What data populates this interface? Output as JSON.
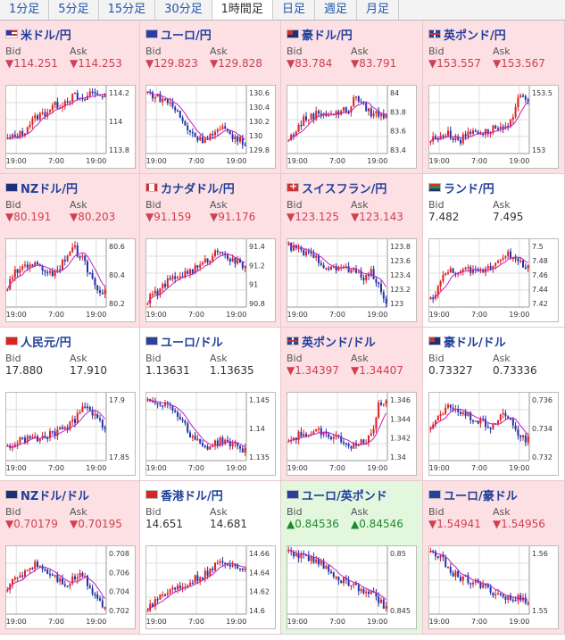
{
  "tabs": [
    "1分足",
    "5分足",
    "15分足",
    "30分足",
    "1時間足",
    "日足",
    "週足",
    "月足"
  ],
  "selected_tab": 4,
  "labels": {
    "bid": "Bid",
    "ask": "Ask"
  },
  "time_labels": [
    "19:00",
    "7:00",
    "19:00"
  ],
  "colors": {
    "down_bg": "#fde0e4",
    "up_bg": "#e3f7df",
    "down_text": "#d04050",
    "up_text": "#1e8a2e",
    "up_candle": "#d22",
    "down_candle": "#2233aa",
    "ma": "#c020c0"
  },
  "pairs": [
    {
      "name": "米ドル/円",
      "flag": "us",
      "dir": "down",
      "bid": "▼114.251",
      "ask": "▼114.253",
      "ticks": [
        "114.2",
        "114",
        "113.8"
      ],
      "trend": [
        0.2,
        0.25,
        0.3,
        0.45,
        0.55,
        0.6,
        0.7,
        0.72,
        0.8,
        0.85,
        0.75,
        0.9,
        0.88,
        0.86
      ]
    },
    {
      "name": "ユーロ/円",
      "flag": "eu",
      "dir": "down",
      "bid": "▼129.823",
      "ask": "▼129.828",
      "ticks": [
        "130.6",
        "130.4",
        "130.2",
        "130",
        "129.8"
      ],
      "trend": [
        0.9,
        0.85,
        0.8,
        0.75,
        0.6,
        0.4,
        0.3,
        0.2,
        0.25,
        0.3,
        0.35,
        0.3,
        0.2,
        0.15
      ]
    },
    {
      "name": "豪ドル/円",
      "flag": "au",
      "dir": "down",
      "bid": "▼83.784",
      "ask": "▼83.791",
      "ticks": [
        "84",
        "83.8",
        "83.6",
        "83.4"
      ],
      "trend": [
        0.2,
        0.35,
        0.5,
        0.55,
        0.6,
        0.6,
        0.58,
        0.62,
        0.65,
        0.85,
        0.7,
        0.6,
        0.58,
        0.55
      ]
    },
    {
      "name": "英ポンド/円",
      "flag": "gb",
      "dir": "down",
      "bid": "▼153.557",
      "ask": "▼153.567",
      "ticks": [
        "153.5",
        "153"
      ],
      "trend": [
        0.2,
        0.25,
        0.3,
        0.25,
        0.2,
        0.3,
        0.35,
        0.3,
        0.35,
        0.4,
        0.35,
        0.5,
        0.9,
        0.8
      ]
    },
    {
      "name": "NZドル/円",
      "flag": "nz",
      "dir": "down",
      "bid": "▼80.191",
      "ask": "▼80.203",
      "ticks": [
        "80.6",
        "80.4",
        "80.2"
      ],
      "trend": [
        0.3,
        0.5,
        0.6,
        0.65,
        0.6,
        0.55,
        0.5,
        0.6,
        0.8,
        0.85,
        0.7,
        0.5,
        0.3,
        0.2
      ]
    },
    {
      "name": "カナダドル/円",
      "flag": "ca",
      "dir": "down",
      "bid": "▼91.159",
      "ask": "▼91.176",
      "ticks": [
        "91.4",
        "91.2",
        "91",
        "90.8"
      ],
      "trend": [
        0.1,
        0.2,
        0.3,
        0.4,
        0.45,
        0.5,
        0.55,
        0.6,
        0.7,
        0.8,
        0.85,
        0.7,
        0.65,
        0.6
      ]
    },
    {
      "name": "スイスフラン/円",
      "flag": "ch",
      "dir": "down",
      "bid": "▼123.125",
      "ask": "▼123.143",
      "ticks": [
        "123.8",
        "123.6",
        "123.4",
        "123.2",
        "123"
      ],
      "trend": [
        0.9,
        0.85,
        0.8,
        0.75,
        0.7,
        0.6,
        0.55,
        0.6,
        0.55,
        0.5,
        0.45,
        0.5,
        0.3,
        0.1
      ]
    },
    {
      "name": "ランド/円",
      "flag": "za",
      "dir": "flat",
      "bid": "7.482",
      "ask": "7.495",
      "ticks": [
        "7.5",
        "7.48",
        "7.46",
        "7.44",
        "7.42"
      ],
      "trend": [
        0.1,
        0.3,
        0.5,
        0.55,
        0.5,
        0.55,
        0.5,
        0.55,
        0.6,
        0.7,
        0.8,
        0.7,
        0.65,
        0.6
      ]
    },
    {
      "name": "人民元/円",
      "flag": "cn",
      "dir": "flat",
      "bid": "17.880",
      "ask": "17.910",
      "ticks": [
        "17.9",
        "17.85"
      ],
      "trend": [
        0.2,
        0.25,
        0.3,
        0.35,
        0.3,
        0.35,
        0.4,
        0.45,
        0.5,
        0.6,
        0.85,
        0.75,
        0.6,
        0.5
      ]
    },
    {
      "name": "ユーロ/ドル",
      "flag": "eu",
      "dir": "flat",
      "bid": "1.13631",
      "ask": "1.13635",
      "ticks": [
        "1.145",
        "1.14",
        "1.135"
      ],
      "trend": [
        0.9,
        0.88,
        0.85,
        0.8,
        0.7,
        0.5,
        0.35,
        0.25,
        0.2,
        0.25,
        0.3,
        0.25,
        0.2,
        0.15
      ]
    },
    {
      "name": "英ポンド/ドル",
      "flag": "gb",
      "dir": "down",
      "bid": "▼1.34397",
      "ask": "▼1.34407",
      "ticks": [
        "1.346",
        "1.344",
        "1.342",
        "1.34"
      ],
      "trend": [
        0.3,
        0.35,
        0.4,
        0.35,
        0.45,
        0.4,
        0.35,
        0.3,
        0.25,
        0.2,
        0.3,
        0.35,
        0.85,
        0.9
      ]
    },
    {
      "name": "豪ドル/ドル",
      "flag": "au",
      "dir": "flat",
      "bid": "0.73327",
      "ask": "0.73336",
      "ticks": [
        "0.736",
        "0.734",
        "0.732"
      ],
      "trend": [
        0.5,
        0.6,
        0.75,
        0.8,
        0.7,
        0.65,
        0.6,
        0.55,
        0.5,
        0.6,
        0.7,
        0.5,
        0.35,
        0.3
      ]
    },
    {
      "name": "NZドル/ドル",
      "flag": "nz",
      "dir": "down",
      "bid": "▼0.70179",
      "ask": "▼0.70195",
      "ticks": [
        "0.708",
        "0.706",
        "0.704",
        "0.702"
      ],
      "trend": [
        0.4,
        0.5,
        0.6,
        0.7,
        0.75,
        0.65,
        0.6,
        0.5,
        0.45,
        0.55,
        0.6,
        0.4,
        0.25,
        0.1
      ]
    },
    {
      "name": "香港ドル/円",
      "flag": "hk",
      "dir": "flat",
      "bid": "14.651",
      "ask": "14.681",
      "ticks": [
        "14.66",
        "14.64",
        "14.62",
        "14.6"
      ],
      "trend": [
        0.1,
        0.2,
        0.3,
        0.35,
        0.4,
        0.45,
        0.5,
        0.55,
        0.6,
        0.7,
        0.8,
        0.75,
        0.7,
        0.72
      ]
    },
    {
      "name": "ユーロ/英ポンド",
      "flag": "eu",
      "dir": "up",
      "bid": "▲0.84536",
      "ask": "▲0.84546",
      "ticks": [
        "0.85",
        "0.845"
      ],
      "trend": [
        0.9,
        0.88,
        0.85,
        0.8,
        0.75,
        0.7,
        0.6,
        0.5,
        0.45,
        0.4,
        0.35,
        0.3,
        0.2,
        0.1
      ]
    },
    {
      "name": "ユーロ/豪ドル",
      "flag": "eu",
      "dir": "down",
      "bid": "▼1.54941",
      "ask": "▼1.54956",
      "ticks": [
        "1.56",
        "1.55"
      ],
      "trend": [
        0.9,
        0.85,
        0.75,
        0.6,
        0.55,
        0.5,
        0.45,
        0.4,
        0.35,
        0.3,
        0.25,
        0.2,
        0.25,
        0.2
      ]
    }
  ]
}
